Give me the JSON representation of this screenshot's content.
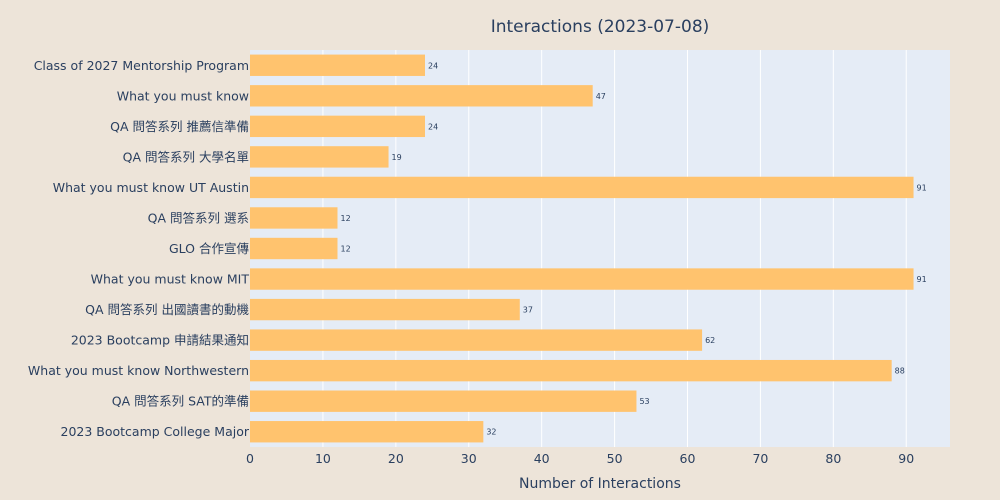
{
  "chart_data": {
    "type": "bar",
    "orientation": "horizontal",
    "title": "Interactions (2023-07-08)",
    "xlabel": "Number of Interactions",
    "ylabel": "",
    "xlim": [
      0,
      96
    ],
    "x_ticks": [
      0,
      10,
      20,
      30,
      40,
      50,
      60,
      70,
      80,
      90
    ],
    "grid": true,
    "bar_color": "#ffc36e",
    "plot_background": "#e5ecf6",
    "page_background": "#ede4d9",
    "categories": [
      "Class of 2027 Mentorship Program",
      "What you must know",
      "QA 問答系列 推薦信準備",
      "QA 問答系列 大學名單",
      "What you must know UT Austin",
      "QA 問答系列 選系",
      "GLO 合作宣傳",
      "What you must know MIT",
      "QA 問答系列 出國讀書的動機",
      "2023 Bootcamp 申請結果通知",
      "What you must know Northwestern",
      "QA 問答系列 SAT的準備",
      "2023 Bootcamp College Major"
    ],
    "values": [
      24,
      47,
      24,
      19,
      91,
      12,
      12,
      91,
      37,
      62,
      88,
      53,
      32
    ]
  }
}
